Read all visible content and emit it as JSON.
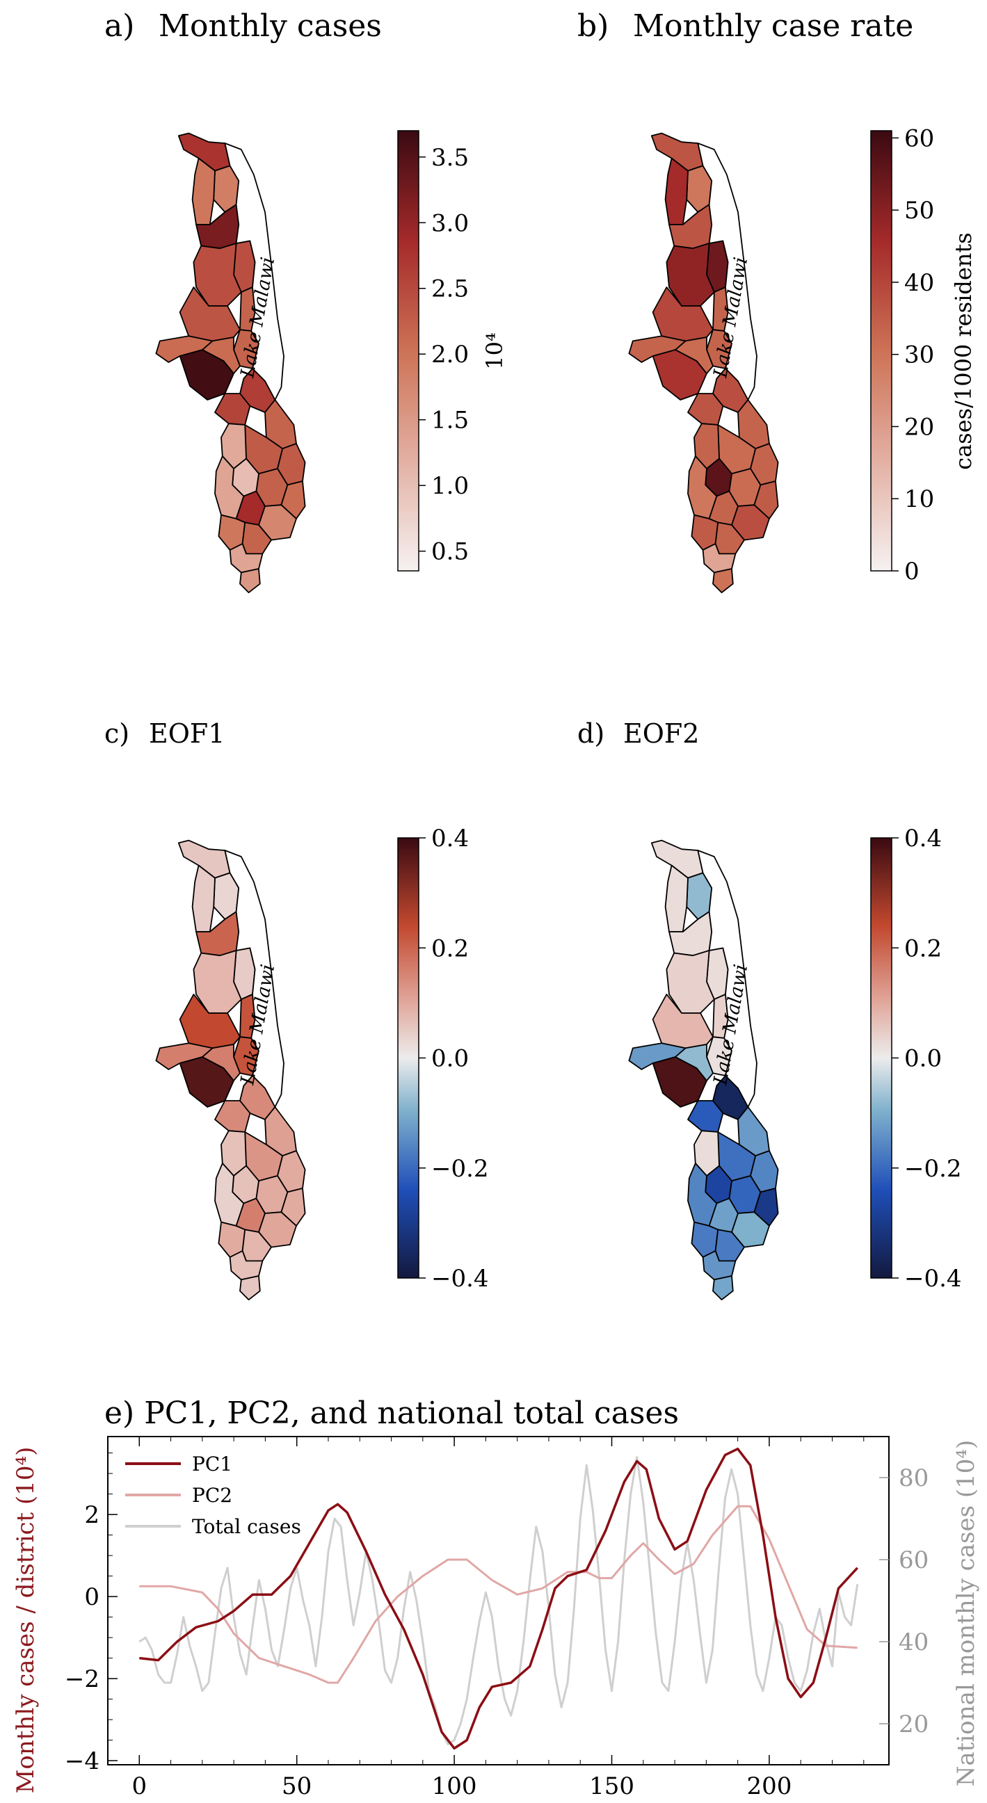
{
  "colors": {
    "pc1": "#8b0e14",
    "pc2": "#e0a7a6",
    "total": "#cfcfcf",
    "left_axis_label": "#8b1a1f",
    "right_axis_label": "#999999",
    "lake": "#ffffff",
    "border": "#000000"
  },
  "panels": {
    "a": {
      "label": "a)",
      "title": "Monthly cases",
      "colorbar": {
        "ticks": [
          "3.5",
          "3.0",
          "2.5",
          "2.0",
          "1.5",
          "1.0",
          "0.5"
        ],
        "label": "10⁴",
        "range": [
          0.35,
          3.7
        ]
      }
    },
    "b": {
      "label": "b)",
      "title": "Monthly case rate",
      "colorbar": {
        "ticks": [
          "60",
          "50",
          "40",
          "30",
          "20",
          "10",
          "0"
        ],
        "label": "cases/1000 residents",
        "range": [
          0,
          61
        ]
      }
    },
    "c": {
      "label": "c)",
      "title": "EOF1",
      "colorbar": {
        "ticks": [
          "0.4",
          "0.2",
          "0.0",
          "−0.2",
          "−0.4"
        ],
        "label": "",
        "range": [
          -0.4,
          0.4
        ]
      }
    },
    "d": {
      "label": "d)",
      "title": "EOF2",
      "colorbar": {
        "ticks": [
          "0.4",
          "0.2",
          "0.0",
          "−0.2",
          "−0.4"
        ],
        "label": "",
        "range": [
          -0.4,
          0.4
        ]
      }
    },
    "lake_label": "Lake Malawi"
  },
  "district_values": {
    "a": [
      0.72,
      0.45,
      0.48,
      0.85,
      0.62,
      0.62,
      0.55,
      0.6,
      0.55,
      0.98,
      0.52,
      0.52,
      0.68,
      0.66,
      0.55,
      0.58,
      0.28,
      0.58,
      0.56,
      0.52,
      0.2,
      0.3,
      0.75,
      0.42,
      0.48,
      0.55,
      0.3,
      0.35
    ],
    "b": [
      0.6,
      0.48,
      0.75,
      0.6,
      0.88,
      0.8,
      0.55,
      0.65,
      0.55,
      0.72,
      0.52,
      0.55,
      0.62,
      0.6,
      0.55,
      0.52,
      0.55,
      0.55,
      0.52,
      0.58,
      0.92,
      0.48,
      0.55,
      0.62,
      0.58,
      0.55,
      0.3,
      0.5
    ],
    "c": [
      0.57,
      0.54,
      0.56,
      0.75,
      0.56,
      0.6,
      0.78,
      0.8,
      0.78,
      0.96,
      0.7,
      0.7,
      0.68,
      0.68,
      0.64,
      0.66,
      0.58,
      0.62,
      0.62,
      0.62,
      0.58,
      0.55,
      0.7,
      0.63,
      0.62,
      0.6,
      0.58,
      0.57
    ],
    "d": [
      0.53,
      0.4,
      0.53,
      0.53,
      0.53,
      0.55,
      0.55,
      0.6,
      0.52,
      0.97,
      0.4,
      0.34,
      0.05,
      0.22,
      0.34,
      0.26,
      0.53,
      0.3,
      0.24,
      0.12,
      0.16,
      0.3,
      0.35,
      0.38,
      0.28,
      0.28,
      0.33,
      0.36
    ]
  },
  "chart_data": {
    "type": "line",
    "title": "e)  PC1, PC2, and national total cases",
    "ylabel": "Monthly cases / district (10⁴)",
    "ylabel_right": "National monthly cases (10⁴)",
    "xlim": [
      -10,
      238
    ],
    "ylim": [
      -4.1,
      3.9
    ],
    "ylim_right": [
      10,
      90
    ],
    "x_ticks": [
      "0",
      "50",
      "100",
      "150",
      "200"
    ],
    "y_ticks": [
      "2",
      "0",
      "−2",
      "−4"
    ],
    "y_ticks_right": [
      "80",
      "60",
      "40",
      "20"
    ],
    "legend": [
      "PC1",
      "PC2",
      "Total cases"
    ],
    "series": [
      {
        "name": "PC1",
        "axis": "left",
        "points": [
          [
            0,
            -1.5
          ],
          [
            6,
            -1.55
          ],
          [
            12,
            -1.1
          ],
          [
            18,
            -0.75
          ],
          [
            25,
            -0.6
          ],
          [
            30,
            -0.35
          ],
          [
            36,
            0.05
          ],
          [
            42,
            0.05
          ],
          [
            48,
            0.5
          ],
          [
            54,
            1.3
          ],
          [
            60,
            2.1
          ],
          [
            63,
            2.25
          ],
          [
            66,
            2.05
          ],
          [
            72,
            1.1
          ],
          [
            78,
            0.05
          ],
          [
            84,
            -0.8
          ],
          [
            90,
            -1.9
          ],
          [
            96,
            -3.3
          ],
          [
            100,
            -3.7
          ],
          [
            104,
            -3.5
          ],
          [
            108,
            -2.7
          ],
          [
            112,
            -2.2
          ],
          [
            118,
            -2.1
          ],
          [
            124,
            -1.7
          ],
          [
            128,
            -0.8
          ],
          [
            132,
            0.2
          ],
          [
            136,
            0.5
          ],
          [
            142,
            0.65
          ],
          [
            148,
            1.6
          ],
          [
            154,
            2.8
          ],
          [
            158,
            3.3
          ],
          [
            161,
            3.1
          ],
          [
            165,
            1.9
          ],
          [
            170,
            1.15
          ],
          [
            174,
            1.35
          ],
          [
            180,
            2.6
          ],
          [
            186,
            3.45
          ],
          [
            190,
            3.6
          ],
          [
            194,
            3.2
          ],
          [
            198,
            1.5
          ],
          [
            202,
            -0.5
          ],
          [
            206,
            -2.0
          ],
          [
            210,
            -2.45
          ],
          [
            214,
            -2.1
          ],
          [
            218,
            -1.0
          ],
          [
            222,
            0.2
          ],
          [
            228,
            0.7
          ]
        ]
      },
      {
        "name": "PC2",
        "axis": "left",
        "points": [
          [
            0,
            0.25
          ],
          [
            10,
            0.25
          ],
          [
            20,
            0.1
          ],
          [
            25,
            -0.3
          ],
          [
            30,
            -0.9
          ],
          [
            38,
            -1.5
          ],
          [
            46,
            -1.7
          ],
          [
            54,
            -1.9
          ],
          [
            60,
            -2.1
          ],
          [
            63,
            -2.1
          ],
          [
            68,
            -1.5
          ],
          [
            75,
            -0.6
          ],
          [
            82,
            0.0
          ],
          [
            90,
            0.5
          ],
          [
            98,
            0.9
          ],
          [
            104,
            0.9
          ],
          [
            112,
            0.4
          ],
          [
            120,
            0.05
          ],
          [
            128,
            0.2
          ],
          [
            136,
            0.6
          ],
          [
            142,
            0.6
          ],
          [
            146,
            0.45
          ],
          [
            150,
            0.45
          ],
          [
            156,
            1.0
          ],
          [
            160,
            1.3
          ],
          [
            165,
            0.9
          ],
          [
            170,
            0.55
          ],
          [
            176,
            0.8
          ],
          [
            182,
            1.5
          ],
          [
            190,
            2.2
          ],
          [
            194,
            2.2
          ],
          [
            200,
            1.4
          ],
          [
            206,
            0.3
          ],
          [
            212,
            -0.8
          ],
          [
            218,
            -1.2
          ],
          [
            228,
            -1.25
          ]
        ]
      },
      {
        "name": "Total cases",
        "axis": "right",
        "points": [
          [
            0,
            40
          ],
          [
            2,
            41
          ],
          [
            4,
            38
          ],
          [
            6,
            32
          ],
          [
            8,
            30
          ],
          [
            10,
            30
          ],
          [
            12,
            37
          ],
          [
            14,
            46
          ],
          [
            16,
            39
          ],
          [
            18,
            34
          ],
          [
            20,
            28
          ],
          [
            22,
            30
          ],
          [
            24,
            42
          ],
          [
            26,
            53
          ],
          [
            28,
            58
          ],
          [
            30,
            46
          ],
          [
            32,
            37
          ],
          [
            34,
            32
          ],
          [
            36,
            44
          ],
          [
            38,
            55
          ],
          [
            40,
            48
          ],
          [
            42,
            38
          ],
          [
            44,
            34
          ],
          [
            46,
            43
          ],
          [
            48,
            53
          ],
          [
            50,
            58
          ],
          [
            52,
            50
          ],
          [
            54,
            44
          ],
          [
            56,
            34
          ],
          [
            58,
            46
          ],
          [
            60,
            62
          ],
          [
            62,
            70
          ],
          [
            64,
            68
          ],
          [
            66,
            55
          ],
          [
            68,
            44
          ],
          [
            70,
            52
          ],
          [
            72,
            62
          ],
          [
            74,
            55
          ],
          [
            76,
            45
          ],
          [
            78,
            33
          ],
          [
            80,
            30
          ],
          [
            82,
            36
          ],
          [
            84,
            48
          ],
          [
            86,
            57
          ],
          [
            88,
            50
          ],
          [
            90,
            40
          ],
          [
            92,
            28
          ],
          [
            94,
            24
          ],
          [
            96,
            18
          ],
          [
            98,
            15
          ],
          [
            100,
            16
          ],
          [
            102,
            20
          ],
          [
            104,
            26
          ],
          [
            106,
            36
          ],
          [
            108,
            45
          ],
          [
            110,
            52
          ],
          [
            112,
            46
          ],
          [
            114,
            34
          ],
          [
            116,
            26
          ],
          [
            118,
            22
          ],
          [
            120,
            28
          ],
          [
            122,
            40
          ],
          [
            124,
            55
          ],
          [
            126,
            68
          ],
          [
            128,
            62
          ],
          [
            130,
            48
          ],
          [
            132,
            32
          ],
          [
            134,
            24
          ],
          [
            136,
            30
          ],
          [
            138,
            48
          ],
          [
            140,
            70
          ],
          [
            142,
            83
          ],
          [
            144,
            72
          ],
          [
            146,
            56
          ],
          [
            148,
            38
          ],
          [
            150,
            28
          ],
          [
            152,
            40
          ],
          [
            154,
            60
          ],
          [
            156,
            76
          ],
          [
            158,
            85
          ],
          [
            160,
            74
          ],
          [
            162,
            58
          ],
          [
            164,
            42
          ],
          [
            166,
            30
          ],
          [
            168,
            28
          ],
          [
            170,
            40
          ],
          [
            172,
            55
          ],
          [
            174,
            64
          ],
          [
            176,
            55
          ],
          [
            178,
            42
          ],
          [
            180,
            30
          ],
          [
            182,
            38
          ],
          [
            184,
            58
          ],
          [
            186,
            75
          ],
          [
            188,
            82
          ],
          [
            190,
            76
          ],
          [
            192,
            60
          ],
          [
            194,
            44
          ],
          [
            196,
            32
          ],
          [
            198,
            28
          ],
          [
            200,
            36
          ],
          [
            202,
            46
          ],
          [
            204,
            44
          ],
          [
            206,
            36
          ],
          [
            208,
            30
          ],
          [
            210,
            28
          ],
          [
            212,
            33
          ],
          [
            214,
            42
          ],
          [
            216,
            48
          ],
          [
            218,
            40
          ],
          [
            220,
            34
          ],
          [
            222,
            52
          ],
          [
            224,
            46
          ],
          [
            226,
            44
          ],
          [
            228,
            54
          ]
        ]
      }
    ],
    "grid": false,
    "legend_position": "upper-left"
  }
}
